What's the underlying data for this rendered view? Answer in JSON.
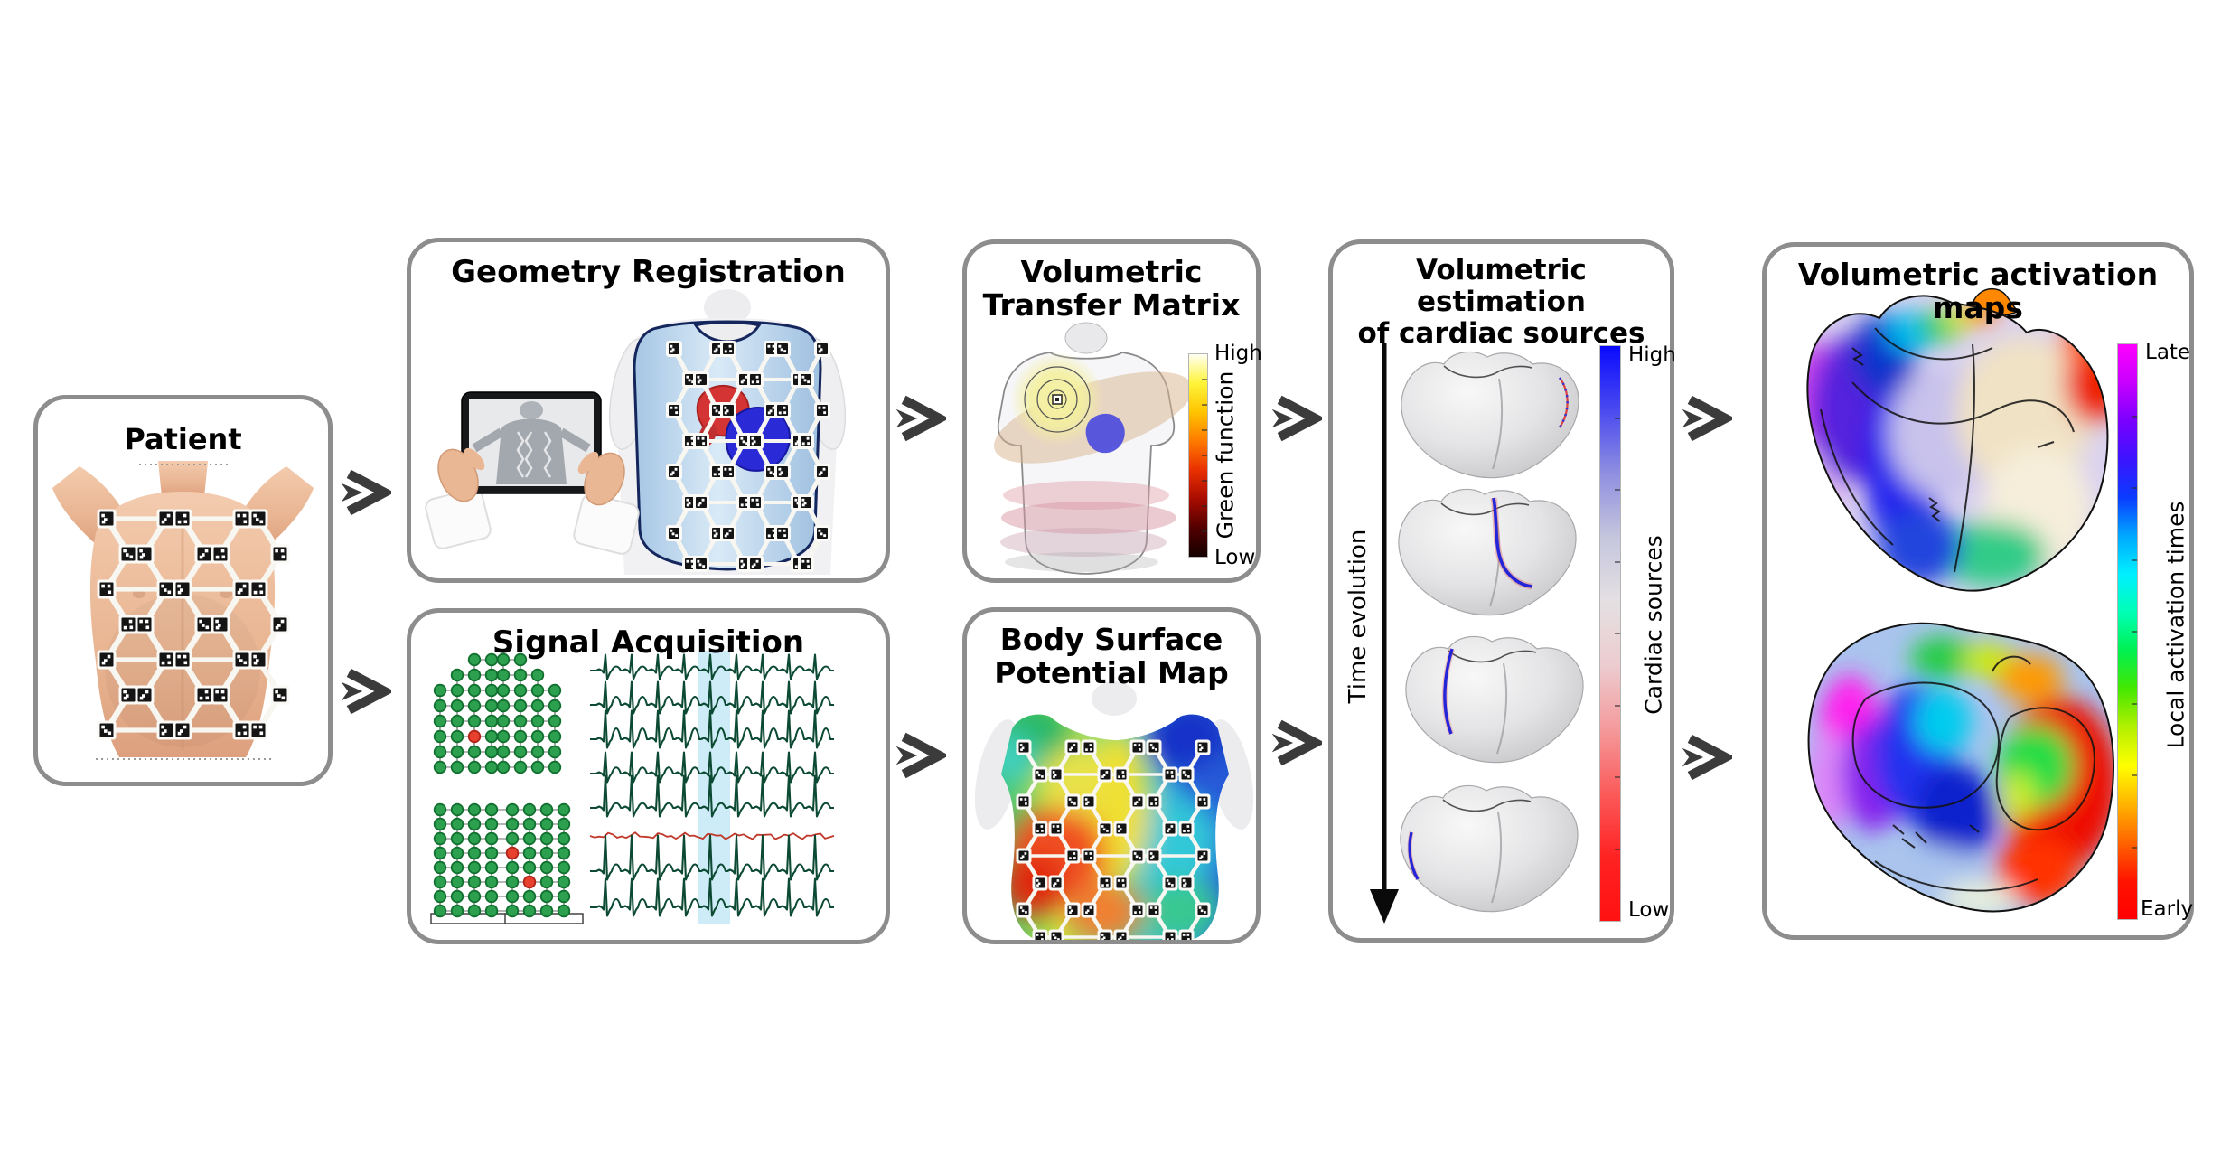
{
  "figure": {
    "background": "#ffffff",
    "panel_border_color": "#8d8d8d",
    "arrow_color": "#3b3b3b"
  },
  "panels": {
    "patient": {
      "title": "Patient"
    },
    "geometry_registration": {
      "title": "Geometry Registration"
    },
    "signal_acquisition": {
      "title": "Signal Acquisition",
      "palette": {
        "electrode_green": "#2ca04e",
        "electrode_fault_red": "#e8402e",
        "ecg_trace_green": "#0c4a33",
        "ecg_artifact_red": "#c0392b",
        "highlight_band_blue": "#c5e9f6"
      }
    },
    "volumetric_transfer_matrix": {
      "title_line1": "Volumetric",
      "title_line2": "Transfer Matrix",
      "colorbar": {
        "top_label": "High",
        "bottom_label": "Low",
        "axis_label": "Green function",
        "stops": [
          "#fffff2",
          "#fef43a",
          "#ffc400",
          "#ff7a00",
          "#e93000",
          "#a80c00",
          "#520000",
          "#150000"
        ]
      }
    },
    "body_surface_potential_map": {
      "title_line1": "Body Surface",
      "title_line2": "Potential Map"
    },
    "volumetric_estimation": {
      "title_line1": "Volumetric estimation",
      "title_line2": "of cardiac sources",
      "time_axis_label": "Time evolution",
      "colorbar": {
        "top_label": "High",
        "bottom_label": "Low",
        "axis_label": "Cardiac sources",
        "stops": [
          "#0a0aff",
          "#4a4af0",
          "#8f8fe0",
          "#c6c6de",
          "#e4e0e2",
          "#eccccf",
          "#f49a9c",
          "#fb5b5b",
          "#ff2222",
          "#ff1111"
        ]
      }
    },
    "volumetric_activation_maps": {
      "title": "Volumetric activation maps",
      "colorbar": {
        "top_label": "Late",
        "bottom_label": "Early",
        "axis_label": "Local activation times",
        "stops": [
          "#ff00ff",
          "#c800ff",
          "#7a00ff",
          "#3c14ff",
          "#0a3cff",
          "#00a8ff",
          "#00f0ff",
          "#00ffb4",
          "#00f050",
          "#46e800",
          "#b4f000",
          "#ffff00",
          "#ffb400",
          "#ff6400",
          "#ff1400",
          "#ff0000"
        ]
      }
    }
  }
}
